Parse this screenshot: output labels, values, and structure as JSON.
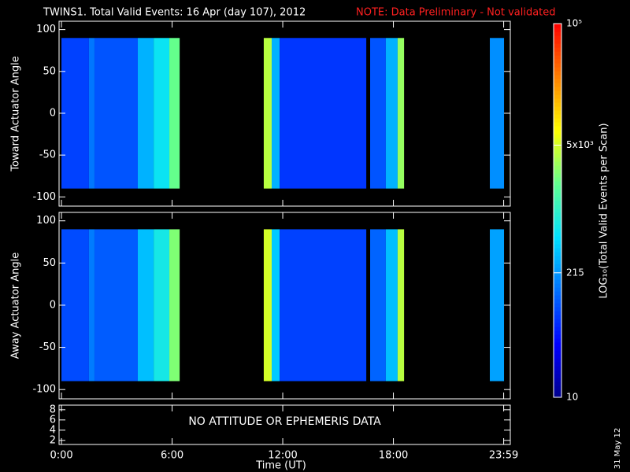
{
  "chart_data": {
    "type": "spectrogram",
    "title": "TWINS1. Total Valid Events: 16 Apr (day 107), 2012",
    "note": "NOTE: Data Preliminary - Not validated",
    "xlabel": "Time (UT)",
    "xlim": [
      -0.13,
      24.34
    ],
    "xticks": [
      {
        "value": 0,
        "label": "0:00"
      },
      {
        "value": 6,
        "label": "6:00"
      },
      {
        "value": 12,
        "label": "12:00"
      },
      {
        "value": 18,
        "label": "18:00"
      },
      {
        "value": 23.98,
        "label": "23:59"
      }
    ],
    "stamp": "31 May 12",
    "colorbar": {
      "label": "LOG₁₀(Total Valid Events per Scan)",
      "zlim": [
        10,
        100000
      ],
      "log": true,
      "zticks": [
        10,
        215,
        {
          "value": 5000,
          "label": "5x10³"
        },
        {
          "value": 100000,
          "label": "10⁵"
        }
      ],
      "colormap": [
        "#00008c",
        "#0000ff",
        "#0070ff",
        "#00e0ff",
        "#60ff90",
        "#ffff00",
        "#ff8000",
        "#ff0000"
      ]
    },
    "panels": [
      {
        "ylabel": "Toward Actuator Angle",
        "ylim": [
          -111,
          110
        ],
        "yticks": [
          -100,
          -50,
          0,
          50,
          100
        ],
        "angle_range": [
          -90,
          90
        ],
        "bins": [
          0,
          1.49,
          1.79,
          4.14,
          5.0,
          5.85,
          6.41,
          10.97,
          11.4,
          11.83,
          16.53,
          16.74,
          17.59,
          18.23,
          18.58,
          23.23,
          24
        ],
        "values": [
          80,
          150,
          100,
          300,
          600,
          2000,
          null,
          4000,
          300,
          70,
          null,
          100,
          300,
          3000,
          null,
          200
        ]
      },
      {
        "ylabel": "Away Actuator Angle",
        "ylim": [
          -111,
          110
        ],
        "yticks": [
          -100,
          -50,
          0,
          50,
          100
        ],
        "angle_range": [
          -90,
          90
        ],
        "bins": [
          0,
          1.49,
          1.79,
          4.14,
          5.0,
          5.85,
          6.41,
          10.97,
          11.4,
          11.83,
          16.53,
          16.74,
          17.59,
          18.23,
          18.58,
          23.23,
          24
        ],
        "values": [
          90,
          160,
          110,
          350,
          700,
          2500,
          null,
          5000,
          400,
          80,
          null,
          120,
          350,
          4000,
          null,
          250
        ]
      },
      {
        "ylim": [
          1.2,
          8.9
        ],
        "yticks": [
          2,
          4,
          6,
          8
        ],
        "annotation": "NO ATTITUDE OR EPHEMERIS DATA"
      }
    ]
  }
}
